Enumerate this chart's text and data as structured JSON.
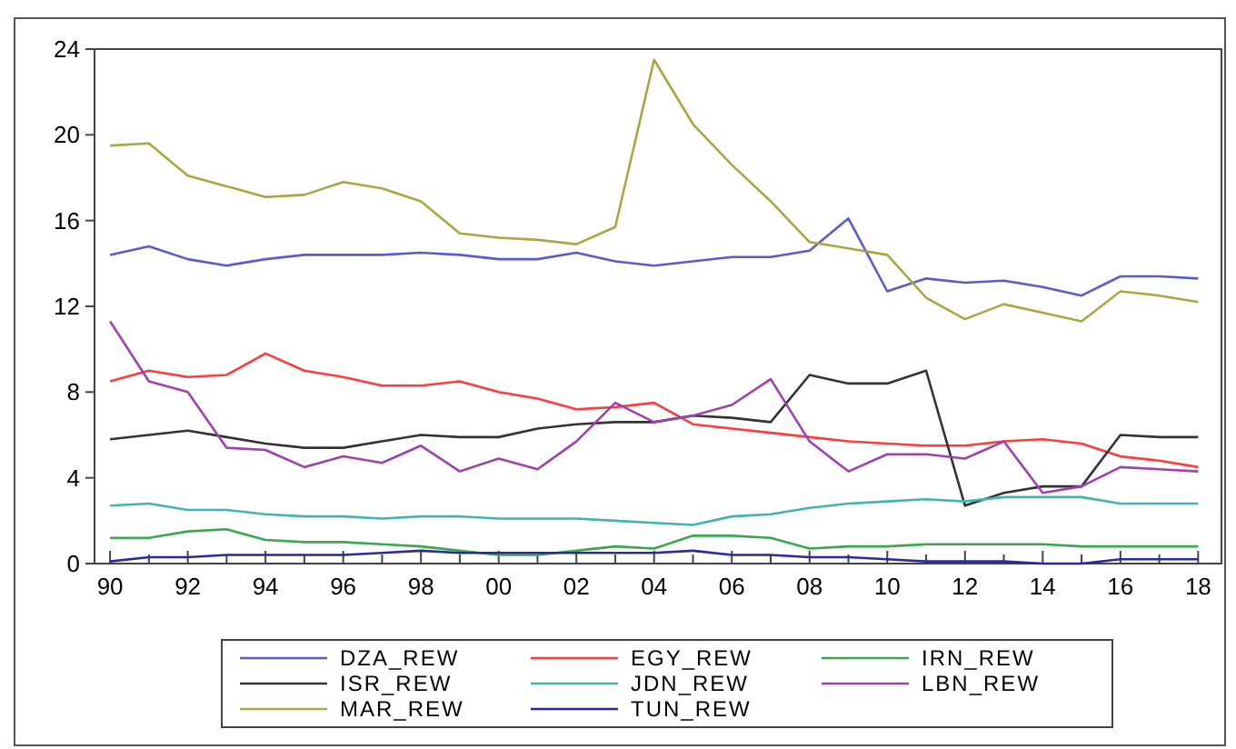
{
  "chart_data": {
    "type": "line",
    "x": [
      1990,
      1991,
      1992,
      1993,
      1994,
      1995,
      1996,
      1997,
      1998,
      1999,
      2000,
      2001,
      2002,
      2003,
      2004,
      2005,
      2006,
      2007,
      2008,
      2009,
      2010,
      2011,
      2012,
      2013,
      2014,
      2015,
      2016,
      2017,
      2018
    ],
    "xlim": [
      1989.6,
      2018.6
    ],
    "ylim": [
      0,
      24
    ],
    "yticks": [
      0,
      4,
      8,
      12,
      16,
      20,
      24
    ],
    "xticks": [
      {
        "value": 1990,
        "label": "90"
      },
      {
        "value": 1991,
        "label": null
      },
      {
        "value": 1992,
        "label": "92"
      },
      {
        "value": 1993,
        "label": null
      },
      {
        "value": 1994,
        "label": "94"
      },
      {
        "value": 1995,
        "label": null
      },
      {
        "value": 1996,
        "label": "96"
      },
      {
        "value": 1997,
        "label": null
      },
      {
        "value": 1998,
        "label": "98"
      },
      {
        "value": 1999,
        "label": null
      },
      {
        "value": 2000,
        "label": "00"
      },
      {
        "value": 2001,
        "label": null
      },
      {
        "value": 2002,
        "label": "02"
      },
      {
        "value": 2003,
        "label": null
      },
      {
        "value": 2004,
        "label": "04"
      },
      {
        "value": 2005,
        "label": null
      },
      {
        "value": 2006,
        "label": "06"
      },
      {
        "value": 2007,
        "label": null
      },
      {
        "value": 2008,
        "label": "08"
      },
      {
        "value": 2009,
        "label": null
      },
      {
        "value": 2010,
        "label": "10"
      },
      {
        "value": 2011,
        "label": null
      },
      {
        "value": 2012,
        "label": "12"
      },
      {
        "value": 2013,
        "label": null
      },
      {
        "value": 2014,
        "label": "14"
      },
      {
        "value": 2015,
        "label": null
      },
      {
        "value": 2016,
        "label": "16"
      },
      {
        "value": 2017,
        "label": null
      },
      {
        "value": 2018,
        "label": "18"
      }
    ],
    "grid": false,
    "legend": "bottom",
    "marker": "none",
    "line_style": "solid",
    "series": [
      {
        "name": "DZA_REW",
        "color": "#5b5bd0",
        "values": [
          14.4,
          14.8,
          14.2,
          13.9,
          14.2,
          14.4,
          14.4,
          14.4,
          14.5,
          14.4,
          14.2,
          14.2,
          14.5,
          14.1,
          13.9,
          14.1,
          14.3,
          14.3,
          14.6,
          16.1,
          12.7,
          13.3,
          13.1,
          13.2,
          12.9,
          12.5,
          13.4,
          13.4,
          13.3
        ]
      },
      {
        "name": "EGY_REW",
        "color": "#ff3b3b",
        "values": [
          8.5,
          9.0,
          8.7,
          8.8,
          9.8,
          9.0,
          8.7,
          8.3,
          8.3,
          8.5,
          8.0,
          7.7,
          7.2,
          7.3,
          7.5,
          6.5,
          6.3,
          6.1,
          5.9,
          5.7,
          5.6,
          5.5,
          5.5,
          5.7,
          5.8,
          5.6,
          5.0,
          4.8,
          4.5
        ]
      },
      {
        "name": "IRN_REW",
        "color": "#3aa84f",
        "values": [
          1.2,
          1.2,
          1.5,
          1.6,
          1.1,
          1.0,
          1.0,
          0.9,
          0.8,
          0.6,
          0.4,
          0.4,
          0.6,
          0.8,
          0.7,
          1.3,
          1.3,
          1.2,
          0.7,
          0.8,
          0.8,
          0.9,
          0.9,
          0.9,
          0.9,
          0.8,
          0.8,
          0.8,
          0.8
        ]
      },
      {
        "name": "ISR_REW",
        "color": "#333333",
        "values": [
          5.8,
          6.0,
          6.2,
          5.9,
          5.6,
          5.4,
          5.4,
          5.7,
          6.0,
          5.9,
          5.9,
          6.3,
          6.5,
          6.6,
          6.6,
          6.9,
          6.8,
          6.6,
          8.8,
          8.4,
          8.4,
          9.0,
          2.7,
          3.3,
          3.6,
          3.6,
          6.0,
          5.9,
          5.9
        ]
      },
      {
        "name": "JDN_REW",
        "color": "#40b5b0",
        "values": [
          2.7,
          2.8,
          2.5,
          2.5,
          2.3,
          2.2,
          2.2,
          2.1,
          2.2,
          2.2,
          2.1,
          2.1,
          2.1,
          2.0,
          1.9,
          1.8,
          2.2,
          2.3,
          2.6,
          2.8,
          2.9,
          3.0,
          2.9,
          3.1,
          3.1,
          3.1,
          2.8,
          2.8,
          2.8
        ]
      },
      {
        "name": "LBN_REW",
        "color": "#a040b0",
        "values": [
          11.3,
          8.5,
          8.0,
          5.4,
          5.3,
          4.5,
          5.0,
          4.7,
          5.5,
          4.3,
          4.9,
          4.4,
          5.7,
          7.5,
          6.6,
          6.9,
          7.4,
          8.6,
          5.7,
          4.3,
          5.1,
          5.1,
          4.9,
          5.7,
          3.3,
          3.6,
          4.5,
          4.4,
          4.3
        ]
      },
      {
        "name": "MAR_REW",
        "color": "#a8a840",
        "values": [
          19.5,
          19.6,
          18.1,
          17.6,
          17.1,
          17.2,
          17.8,
          17.5,
          16.9,
          15.4,
          15.2,
          15.1,
          14.9,
          15.7,
          23.5,
          20.5,
          18.6,
          16.9,
          15.0,
          14.7,
          14.4,
          12.4,
          11.4,
          12.1,
          11.7,
          11.3,
          12.7,
          12.5,
          12.2
        ]
      },
      {
        "name": "TUN_REW",
        "color": "#2a2aa0",
        "values": [
          0.1,
          0.3,
          0.3,
          0.4,
          0.4,
          0.4,
          0.4,
          0.5,
          0.6,
          0.5,
          0.5,
          0.5,
          0.5,
          0.5,
          0.5,
          0.6,
          0.4,
          0.4,
          0.3,
          0.3,
          0.2,
          0.1,
          0.1,
          0.1,
          0.0,
          0.0,
          0.2,
          0.2,
          0.2
        ]
      }
    ]
  }
}
